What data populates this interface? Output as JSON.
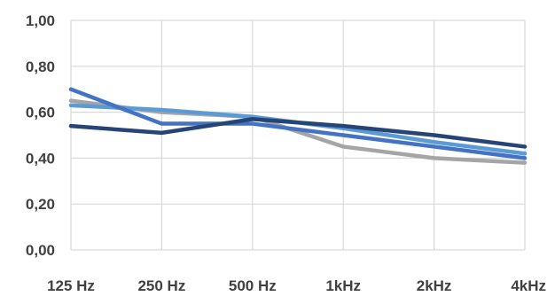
{
  "chart_data": {
    "type": "line",
    "title": "",
    "xlabel": "",
    "ylabel": "",
    "categories": [
      "125 Hz",
      "250 Hz",
      "500 Hz",
      "1kHz",
      "2kHz",
      "4kHz"
    ],
    "y_tick_labels": [
      "0,00",
      "0,20",
      "0,40",
      "0,60",
      "0,80",
      "1,00"
    ],
    "y_ticks": [
      0,
      0.2,
      0.4,
      0.6,
      0.8,
      1.0
    ],
    "ylim": [
      0,
      1.0
    ],
    "grid": true,
    "legend": "none",
    "series": [
      {
        "color": "#a5a5a5",
        "values": [
          0.65,
          0.6,
          0.58,
          0.45,
          0.4,
          0.38
        ]
      },
      {
        "color": "#5b9bd5",
        "values": [
          0.63,
          0.61,
          0.58,
          0.53,
          0.47,
          0.42
        ]
      },
      {
        "color": "#4472c4",
        "values": [
          0.7,
          0.55,
          0.55,
          0.5,
          0.45,
          0.4
        ]
      },
      {
        "color": "#264478",
        "values": [
          0.54,
          0.51,
          0.57,
          0.54,
          0.5,
          0.45
        ]
      }
    ]
  }
}
